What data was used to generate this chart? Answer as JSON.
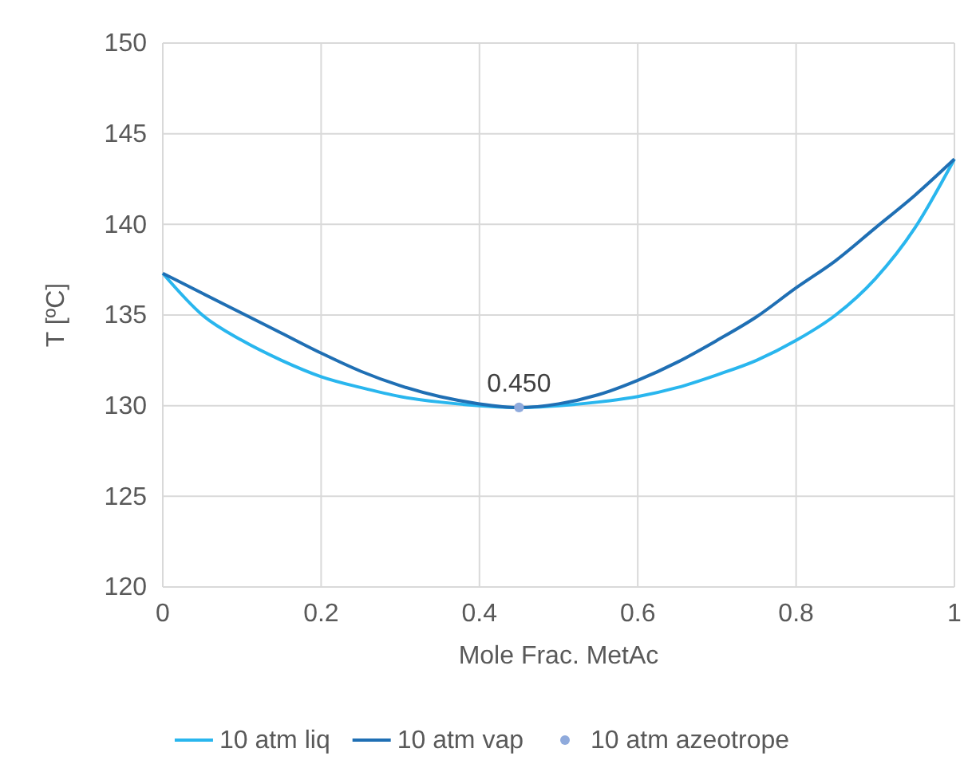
{
  "chart_data": {
    "type": "line",
    "xlabel": "Mole Frac. MetAc",
    "ylabel": "T [ºC]",
    "xlim": [
      0,
      1
    ],
    "xticks": [
      0,
      0.2,
      0.4,
      0.6,
      0.8,
      1
    ],
    "ylim": [
      120,
      150
    ],
    "yticks": [
      120,
      125,
      130,
      135,
      140,
      145,
      150
    ],
    "grid": true,
    "legend": "bottom",
    "marker": "none",
    "line_style": "solid",
    "series": [
      {
        "name": "10 atm liq",
        "color": "#29b6ee",
        "x": [
          0,
          0.05,
          0.1,
          0.15,
          0.2,
          0.25,
          0.3,
          0.35,
          0.4,
          0.45,
          0.5,
          0.55,
          0.6,
          0.65,
          0.7,
          0.75,
          0.8,
          0.85,
          0.9,
          0.95,
          1
        ],
        "values": [
          137.3,
          135.0,
          133.6,
          132.5,
          131.6,
          131.0,
          130.5,
          130.2,
          130.0,
          129.9,
          130.0,
          130.2,
          130.5,
          131.0,
          131.7,
          132.5,
          133.6,
          135.0,
          137.0,
          139.8,
          143.6
        ]
      },
      {
        "name": "10 atm vap",
        "color": "#1f6fb4",
        "x": [
          0,
          0.05,
          0.1,
          0.15,
          0.2,
          0.25,
          0.3,
          0.35,
          0.4,
          0.45,
          0.5,
          0.55,
          0.6,
          0.65,
          0.7,
          0.75,
          0.8,
          0.85,
          0.9,
          0.95,
          1
        ],
        "values": [
          137.3,
          136.2,
          135.1,
          134.0,
          132.9,
          131.9,
          131.1,
          130.5,
          130.1,
          129.9,
          130.1,
          130.6,
          131.4,
          132.4,
          133.6,
          134.9,
          136.5,
          138.0,
          139.8,
          141.6,
          143.6
        ]
      },
      {
        "name": "10 atm azeotrope",
        "type": "scatter",
        "marker": "circle",
        "color": "#8faadc",
        "x": [
          0.45
        ],
        "values": [
          129.9
        ]
      }
    ],
    "annotations": [
      {
        "text": "0.450",
        "x": 0.45,
        "y": 129.9
      }
    ]
  }
}
